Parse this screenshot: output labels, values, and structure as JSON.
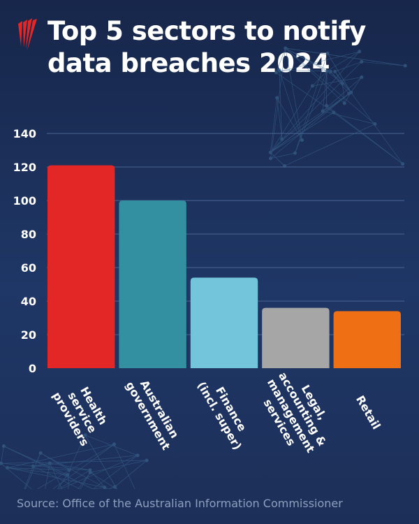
{
  "title_line1": "Top 5 sectors to notify",
  "title_line2": "data breaches 2024",
  "logo_icon": "sbs-logo-icon",
  "source": "Source: Office of the Australian Information Commissioner",
  "chart_data": {
    "type": "bar",
    "title": "Top 5 sectors to notify data breaches 2024",
    "categories": [
      [
        "Health",
        "service",
        "providers"
      ],
      [
        "Australian",
        "government"
      ],
      [
        "Finance",
        "(incl. super)"
      ],
      [
        "Legal,",
        "accounting &",
        "management",
        "services"
      ],
      [
        "Retail"
      ]
    ],
    "values": [
      121,
      100,
      54,
      36,
      34
    ],
    "colors": [
      "#e32726",
      "#3290a0",
      "#72c5db",
      "#a6a6a6",
      "#ef7014"
    ],
    "ylim": [
      0,
      140
    ],
    "yticks": [
      0,
      20,
      40,
      60,
      80,
      100,
      120,
      140
    ],
    "grid": true,
    "xlabel": "",
    "ylabel": ""
  }
}
